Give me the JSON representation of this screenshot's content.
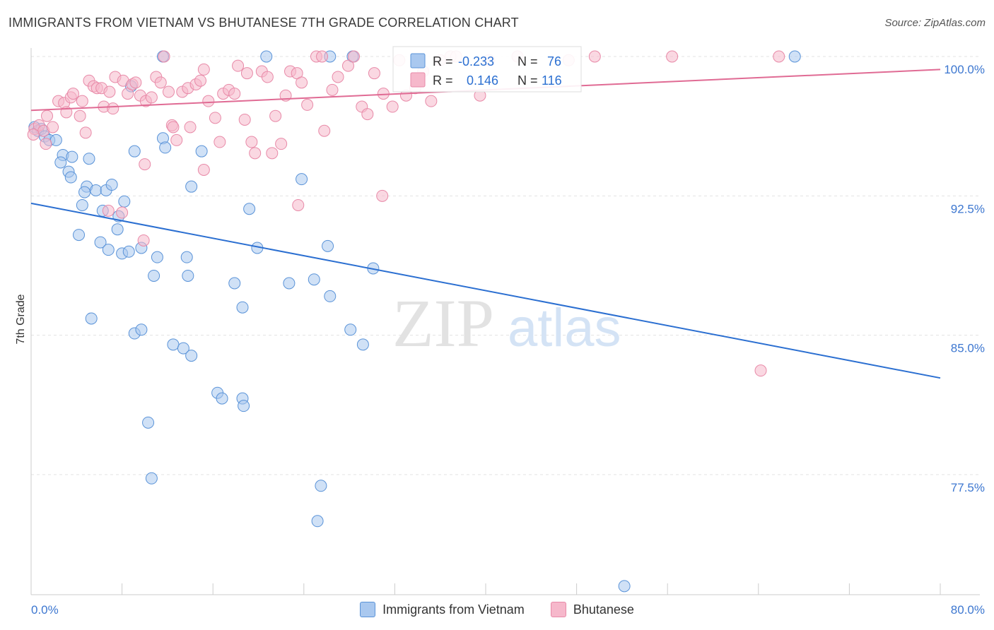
{
  "title": "IMMIGRANTS FROM VIETNAM VS BHUTANESE 7TH GRADE CORRELATION CHART",
  "source": "Source: ZipAtlas.com",
  "watermark": {
    "zip": "ZIP",
    "atlas": "atlas"
  },
  "colors": {
    "blue_fill": "#a9c8ef",
    "blue_stroke": "#5a93d8",
    "blue_line": "#2b6fd1",
    "pink_fill": "#f6b8cb",
    "pink_stroke": "#e88aa8",
    "pink_line": "#e06b94",
    "tick_text": "#3d77d0",
    "grid": "#dddddd"
  },
  "stats": {
    "blue": {
      "r_label": "R =",
      "r_value": "-0.233",
      "n_label": "N =",
      "n_value": "76"
    },
    "pink": {
      "r_label": "R =",
      "r_value": "0.146",
      "n_label": "N =",
      "n_value": "116"
    }
  },
  "chart_data": {
    "type": "scatter",
    "title": "IMMIGRANTS FROM VIETNAM VS BHUTANESE 7TH GRADE CORRELATION CHART",
    "xlabel": "",
    "ylabel": "7th Grade",
    "xlim": [
      0,
      80
    ],
    "ylim": [
      71.5,
      100.5
    ],
    "x_tick_labels": [
      "0.0%",
      "80.0%"
    ],
    "y_ticks": [
      100.0,
      92.5,
      85.0,
      77.5
    ],
    "y_tick_labels": [
      "100.0%",
      "92.5%",
      "85.0%",
      "77.5%"
    ],
    "grid": true,
    "legend_position": "bottom",
    "series": [
      {
        "name": "Immigrants from Vietnam",
        "color": "#a9c8ef",
        "trend": {
          "x": [
            0,
            80
          ],
          "y": [
            92.1,
            82.7
          ]
        },
        "points": [
          [
            0.3,
            96.2
          ],
          [
            0.6,
            96.0
          ],
          [
            0.9,
            96.1
          ],
          [
            1.2,
            95.7
          ],
          [
            1.6,
            95.5
          ],
          [
            2.2,
            95.5
          ],
          [
            2.8,
            94.7
          ],
          [
            3.6,
            94.6
          ],
          [
            5.1,
            94.5
          ],
          [
            2.6,
            94.3
          ],
          [
            3.3,
            93.8
          ],
          [
            3.5,
            93.5
          ],
          [
            4.9,
            93.0
          ],
          [
            4.7,
            92.7
          ],
          [
            5.7,
            92.8
          ],
          [
            6.6,
            92.8
          ],
          [
            7.1,
            93.1
          ],
          [
            4.5,
            92.0
          ],
          [
            6.3,
            91.7
          ],
          [
            8.2,
            92.2
          ],
          [
            7.7,
            91.4
          ],
          [
            7.6,
            90.7
          ],
          [
            4.2,
            90.4
          ],
          [
            6.1,
            90.0
          ],
          [
            6.8,
            89.6
          ],
          [
            8.0,
            89.4
          ],
          [
            8.6,
            89.5
          ],
          [
            9.7,
            89.7
          ],
          [
            11.1,
            89.2
          ],
          [
            13.7,
            89.2
          ],
          [
            10.8,
            88.2
          ],
          [
            13.8,
            88.2
          ],
          [
            11.6,
            95.6
          ],
          [
            11.8,
            95.1
          ],
          [
            9.1,
            94.9
          ],
          [
            15.0,
            94.9
          ],
          [
            8.8,
            98.4
          ],
          [
            11.6,
            100.0
          ],
          [
            20.7,
            100.0
          ],
          [
            26.3,
            100.0
          ],
          [
            28.3,
            100.0
          ],
          [
            67.2,
            100.0
          ],
          [
            14.1,
            93.0
          ],
          [
            23.8,
            93.4
          ],
          [
            19.2,
            91.8
          ],
          [
            19.9,
            89.7
          ],
          [
            26.1,
            89.8
          ],
          [
            30.1,
            88.6
          ],
          [
            17.9,
            87.8
          ],
          [
            22.7,
            87.8
          ],
          [
            24.9,
            88.0
          ],
          [
            26.3,
            87.1
          ],
          [
            18.6,
            86.5
          ],
          [
            5.3,
            85.9
          ],
          [
            9.1,
            85.1
          ],
          [
            9.7,
            85.3
          ],
          [
            12.5,
            84.5
          ],
          [
            13.4,
            84.3
          ],
          [
            14.1,
            83.9
          ],
          [
            28.1,
            85.3
          ],
          [
            29.2,
            84.5
          ],
          [
            16.4,
            81.9
          ],
          [
            16.8,
            81.6
          ],
          [
            18.6,
            81.6
          ],
          [
            18.7,
            81.2
          ],
          [
            10.3,
            80.3
          ],
          [
            10.6,
            77.3
          ],
          [
            25.5,
            76.9
          ],
          [
            25.2,
            75.0
          ],
          [
            52.2,
            71.5
          ]
        ]
      },
      {
        "name": "Bhutanese",
        "color": "#f6b8cb",
        "trend": {
          "x": [
            0,
            80
          ],
          "y": [
            97.1,
            99.3
          ]
        },
        "points": [
          [
            0.3,
            96.1
          ],
          [
            0.7,
            96.3
          ],
          [
            1.1,
            96.0
          ],
          [
            1.4,
            96.8
          ],
          [
            1.9,
            96.2
          ],
          [
            2.4,
            97.6
          ],
          [
            2.9,
            97.5
          ],
          [
            3.1,
            97.0
          ],
          [
            3.5,
            97.8
          ],
          [
            3.7,
            98.0
          ],
          [
            4.3,
            96.8
          ],
          [
            4.5,
            97.6
          ],
          [
            4.8,
            95.9
          ],
          [
            5.1,
            98.7
          ],
          [
            5.5,
            98.4
          ],
          [
            5.8,
            98.3
          ],
          [
            6.2,
            98.3
          ],
          [
            6.4,
            97.3
          ],
          [
            6.9,
            98.1
          ],
          [
            7.2,
            97.2
          ],
          [
            7.4,
            98.9
          ],
          [
            8.1,
            98.7
          ],
          [
            8.5,
            98.0
          ],
          [
            8.9,
            98.5
          ],
          [
            9.2,
            98.6
          ],
          [
            9.6,
            97.9
          ],
          [
            10.1,
            97.6
          ],
          [
            10.6,
            97.8
          ],
          [
            11.0,
            98.9
          ],
          [
            11.4,
            98.6
          ],
          [
            11.7,
            100.0
          ],
          [
            12.1,
            98.1
          ],
          [
            12.4,
            96.3
          ],
          [
            12.8,
            95.5
          ],
          [
            13.3,
            98.1
          ],
          [
            13.8,
            98.3
          ],
          [
            14.0,
            96.2
          ],
          [
            14.5,
            98.5
          ],
          [
            14.9,
            98.7
          ],
          [
            15.2,
            99.3
          ],
          [
            15.6,
            97.6
          ],
          [
            16.2,
            96.7
          ],
          [
            16.6,
            95.4
          ],
          [
            16.9,
            98.0
          ],
          [
            17.4,
            98.2
          ],
          [
            17.9,
            98.0
          ],
          [
            18.2,
            99.5
          ],
          [
            18.8,
            96.6
          ],
          [
            19.0,
            99.1
          ],
          [
            19.4,
            95.4
          ],
          [
            19.7,
            94.8
          ],
          [
            20.3,
            99.2
          ],
          [
            20.8,
            98.9
          ],
          [
            21.2,
            94.8
          ],
          [
            21.5,
            96.8
          ],
          [
            22.0,
            95.3
          ],
          [
            22.4,
            97.9
          ],
          [
            22.8,
            99.2
          ],
          [
            23.4,
            99.1
          ],
          [
            23.8,
            98.6
          ],
          [
            24.3,
            97.4
          ],
          [
            25.1,
            100.0
          ],
          [
            25.6,
            100.0
          ],
          [
            26.5,
            98.2
          ],
          [
            27.0,
            98.9
          ],
          [
            27.9,
            99.5
          ],
          [
            28.4,
            100.0
          ],
          [
            29.1,
            97.3
          ],
          [
            29.6,
            96.9
          ],
          [
            30.2,
            99.1
          ],
          [
            31.0,
            98.0
          ],
          [
            31.8,
            97.3
          ],
          [
            32.4,
            99.8
          ],
          [
            33.0,
            97.9
          ],
          [
            33.8,
            98.3
          ],
          [
            34.5,
            99.2
          ],
          [
            35.2,
            97.6
          ],
          [
            36.0,
            99.8
          ],
          [
            36.9,
            100.0
          ],
          [
            37.4,
            100.0
          ],
          [
            39.5,
            97.9
          ],
          [
            40.3,
            99.8
          ],
          [
            42.8,
            100.0
          ],
          [
            47.3,
            99.8
          ],
          [
            49.6,
            100.0
          ],
          [
            56.4,
            100.0
          ],
          [
            65.8,
            100.0
          ],
          [
            12.5,
            96.2
          ],
          [
            15.2,
            93.9
          ],
          [
            23.5,
            92.0
          ],
          [
            30.9,
            92.5
          ],
          [
            10.0,
            94.2
          ],
          [
            6.8,
            91.7
          ],
          [
            8.0,
            91.6
          ],
          [
            9.9,
            90.1
          ],
          [
            25.8,
            96.0
          ],
          [
            64.2,
            83.1
          ],
          [
            0.2,
            95.8
          ],
          [
            1.3,
            95.3
          ]
        ]
      }
    ]
  },
  "legend": {
    "items": [
      {
        "label": "Immigrants from Vietnam",
        "color": "#a9c8ef"
      },
      {
        "label": "Bhutanese",
        "color": "#f6b8cb"
      }
    ]
  }
}
